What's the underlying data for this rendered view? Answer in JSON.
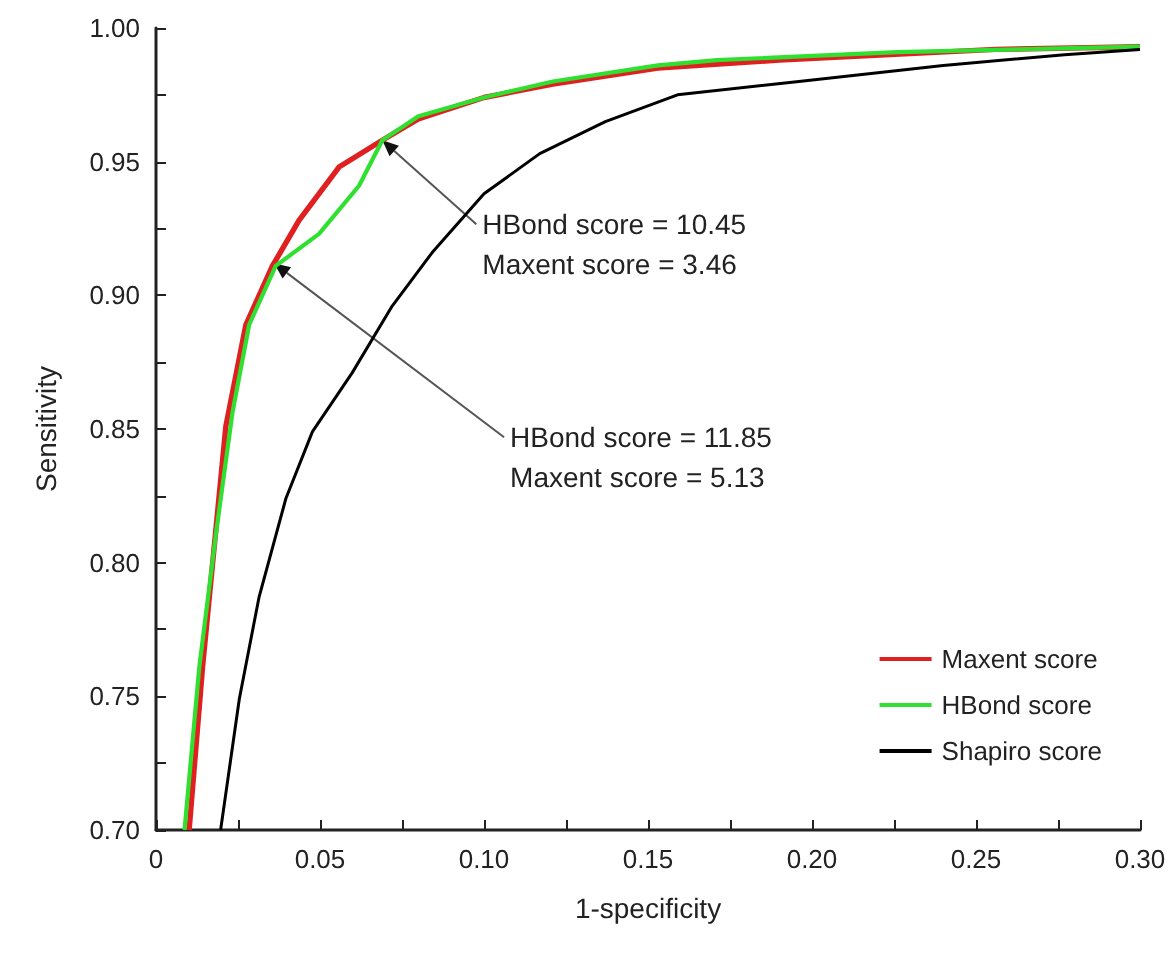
{
  "chart_data": {
    "type": "line",
    "xlabel": "1-specificity",
    "ylabel": "Sensitivity",
    "series": [
      {
        "name": "Maxent score",
        "color": "#e02020",
        "x": [
          0.0101,
          0.0142,
          0.0172,
          0.0213,
          0.0274,
          0.0355,
          0.0436,
          0.0558,
          0.069,
          0.08,
          0.1,
          0.121,
          0.137,
          0.153,
          0.19,
          0.256,
          0.3
        ],
        "values": [
          0.7,
          0.761,
          0.799,
          0.851,
          0.889,
          0.911,
          0.928,
          0.948,
          0.958,
          0.966,
          0.974,
          0.979,
          0.982,
          0.985,
          0.988,
          0.992,
          0.993
        ]
      },
      {
        "name": "HBond score",
        "color": "#30e030",
        "x": [
          0.0087,
          0.0132,
          0.0183,
          0.0233,
          0.0284,
          0.0365,
          0.0497,
          0.0619,
          0.069,
          0.08,
          0.1,
          0.121,
          0.153,
          0.171,
          0.226,
          0.3
        ],
        "values": [
          0.7,
          0.761,
          0.811,
          0.856,
          0.889,
          0.911,
          0.923,
          0.941,
          0.958,
          0.967,
          0.974,
          0.98,
          0.986,
          0.988,
          0.991,
          0.993
        ]
      },
      {
        "name": "Shapiro score",
        "color": "#000000",
        "x": [
          0.0197,
          0.0254,
          0.0314,
          0.0396,
          0.0477,
          0.0598,
          0.072,
          0.0842,
          0.1,
          0.117,
          0.137,
          0.159,
          0.196,
          0.24,
          0.277,
          0.3
        ],
        "values": [
          0.7,
          0.749,
          0.787,
          0.824,
          0.849,
          0.871,
          0.896,
          0.916,
          0.938,
          0.953,
          0.965,
          0.975,
          0.98,
          0.986,
          0.99,
          0.992
        ]
      }
    ],
    "xlim": [
      0,
      0.3
    ],
    "xticks": [
      0,
      0.05,
      {
        "value": 0.1,
        "label": "0.10"
      },
      0.15,
      {
        "value": 0.2,
        "label": "0.20"
      },
      0.25,
      {
        "value": 0.3,
        "label": "0.30"
      }
    ],
    "ylim": [
      0.7,
      1.0
    ],
    "yticks": [
      {
        "value": 0.7,
        "label": "0.70"
      },
      0.75,
      {
        "value": 0.8,
        "label": "0.80"
      },
      0.85,
      {
        "value": 0.9,
        "label": "0.90"
      },
      0.95,
      {
        "value": 1.0,
        "label": "1.00"
      }
    ],
    "annotations": [
      {
        "text": "HBond score = 10.45\nMaxent score = 3.46",
        "x": 0.069,
        "y": 0.958
      },
      {
        "text": "HBond score = 11.85\nMaxent score = 5.13",
        "x": 0.036,
        "y": 0.912
      }
    ],
    "legend": "bottom right",
    "grid": false,
    "marker": "none",
    "line_style": "solid"
  }
}
